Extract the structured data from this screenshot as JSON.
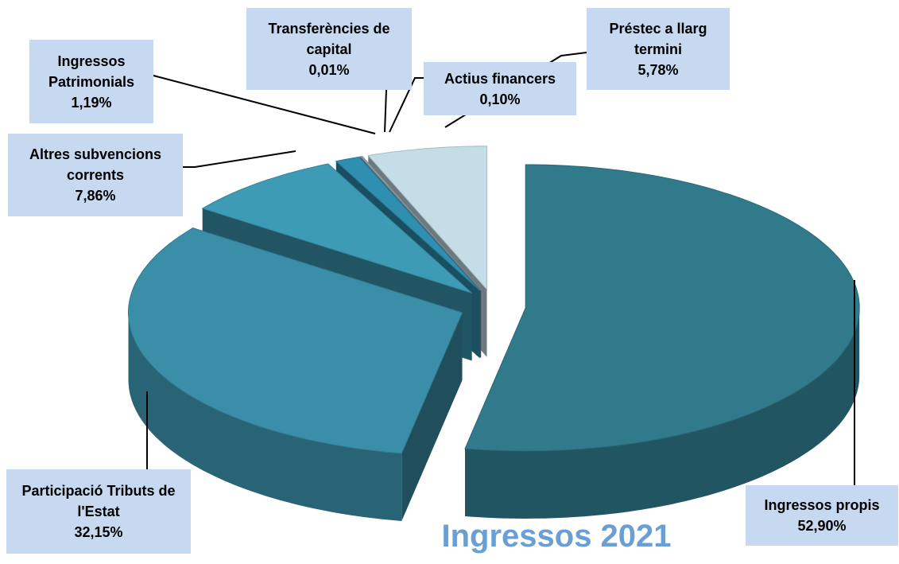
{
  "chart_data": {
    "type": "pie",
    "title": "Ingressos 2021",
    "categories": [
      "Ingressos propis",
      "Participació Tributs de l'Estat",
      "Altres subvencions corrents",
      "Ingressos Patrimonials",
      "Transferències de capital",
      "Actius financers",
      "Préstec a llarg termini"
    ],
    "values": [
      52.9,
      32.15,
      7.86,
      1.19,
      0.01,
      0.1,
      5.78
    ],
    "value_labels": [
      "52,90%",
      "32,15%",
      "7,86%",
      "1,19%",
      "0,01%",
      "0,10%",
      "5,78%"
    ],
    "colors": [
      "#317a8c",
      "#3a8ea8",
      "#3d9bb5",
      "#2e8fb0",
      "#6f8c96",
      "#9aa6ad",
      "#c5dde6"
    ]
  }
}
